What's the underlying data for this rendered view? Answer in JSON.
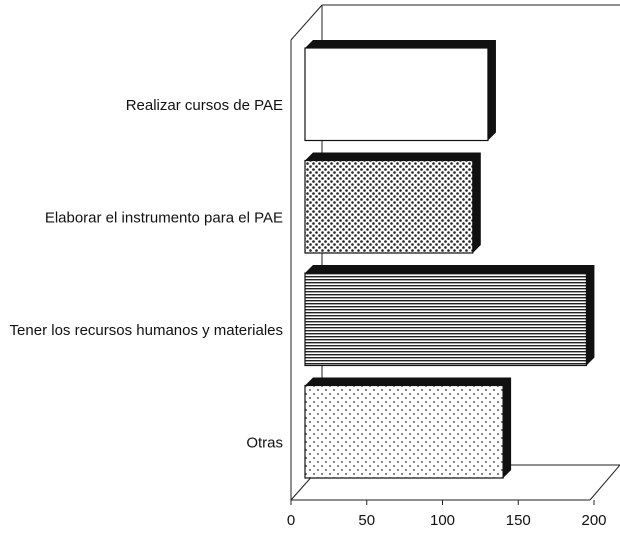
{
  "chart_data": {
    "type": "bar",
    "orientation": "horizontal",
    "categories": [
      "Realizar cursos de PAE",
      "Elaborar el instrumento para el PAE",
      "Tener los recursos humanos y materiales",
      "Otras"
    ],
    "values": [
      130,
      120,
      195,
      140
    ],
    "xlim": [
      0,
      200
    ],
    "xticks": [
      0,
      50,
      100,
      150,
      200
    ]
  }
}
